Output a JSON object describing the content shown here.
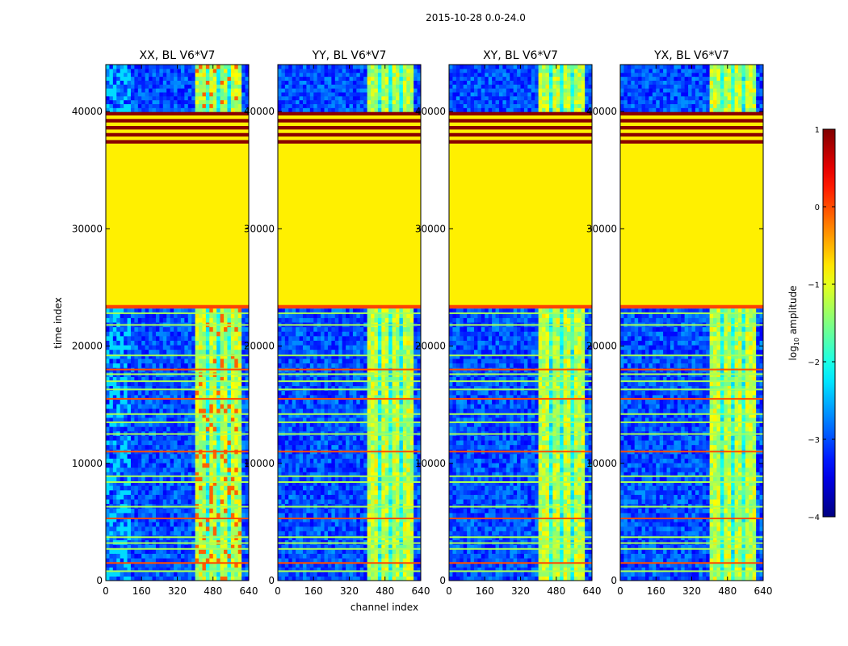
{
  "chart_data": {
    "type": "heatmap",
    "suptitle": "2015-10-28 0.0-24.0",
    "xlabel": "channel index",
    "ylabel": "time index",
    "xlim": [
      0,
      640
    ],
    "ylim": [
      0,
      44000
    ],
    "x_ticks": [
      0,
      160,
      320,
      480,
      640
    ],
    "y_ticks": [
      0,
      10000,
      20000,
      30000,
      40000
    ],
    "panels": [
      {
        "title": "XX, BL V6*V7"
      },
      {
        "title": "YY, BL V6*V7"
      },
      {
        "title": "XY, BL V6*V7"
      },
      {
        "title": "YX, BL V6*V7"
      }
    ],
    "colorbar": {
      "label": "log10 amplitude",
      "label_main": "log",
      "label_sub": "10",
      "label_rest": " amplitude",
      "range": [
        -4,
        1
      ],
      "ticks": [
        1,
        0,
        -1,
        -2,
        -3,
        -4
      ],
      "tick_labels": [
        "1",
        "0",
        "−1",
        "−2",
        "−3",
        "−4"
      ],
      "colormap": "jet"
    },
    "structure": {
      "flagged_block_time_range": [
        23500,
        37300
      ],
      "flagged_block_value": -0.8,
      "striped_block_time_range": [
        37300,
        40000
      ],
      "bright_channel_range": [
        405,
        600
      ],
      "data_rows_upper": [
        40000,
        44000
      ],
      "data_rows_lower": [
        0,
        23200
      ]
    }
  }
}
